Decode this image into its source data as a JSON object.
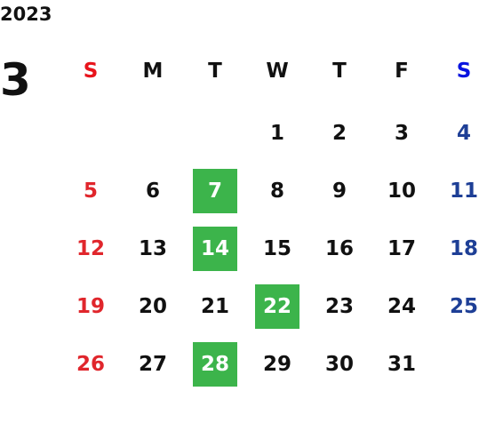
{
  "year": "2023",
  "month": "3",
  "weekdays": [
    "S",
    "M",
    "T",
    "W",
    "T",
    "F",
    "S"
  ],
  "weeks": [
    [
      null,
      null,
      null,
      1,
      2,
      3,
      4
    ],
    [
      5,
      6,
      7,
      8,
      9,
      10,
      11
    ],
    [
      12,
      13,
      14,
      15,
      16,
      17,
      18
    ],
    [
      19,
      20,
      21,
      22,
      23,
      24,
      25
    ],
    [
      26,
      27,
      28,
      29,
      30,
      31,
      null
    ]
  ],
  "highlighted_days": [
    7,
    14,
    22,
    28
  ],
  "colors": {
    "sunday_header": "#e8141c",
    "saturday_header": "#0a14e0",
    "sunday": "#e0262c",
    "saturday": "#1e3f96",
    "weekday": "#111111",
    "highlight": "#3cb44b",
    "highlight_text": "#ffffff"
  }
}
